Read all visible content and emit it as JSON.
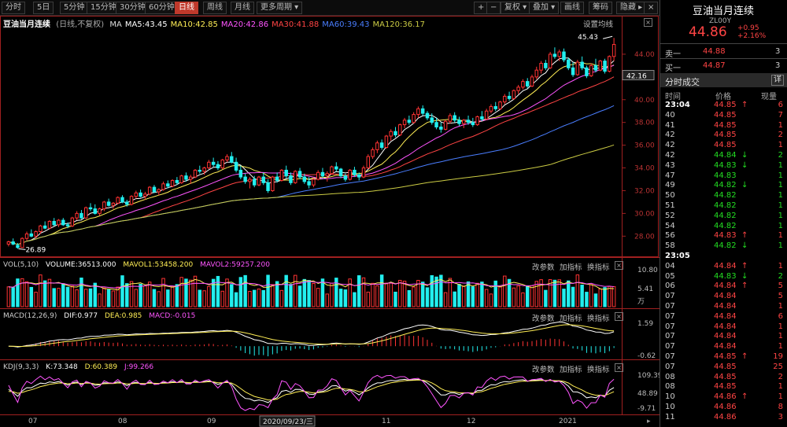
{
  "toolbar": {
    "items": [
      "分时",
      "5日",
      "5分钟",
      "15分钟",
      "30分钟",
      "60分钟",
      "日线",
      "周线",
      "月线",
      "更多周期"
    ],
    "right_items": [
      "+",
      "−",
      "复权",
      "叠加",
      "画线",
      "筹码",
      "隐藏"
    ],
    "right_icon": "close-icon"
  },
  "main": {
    "title": "豆油当月连续",
    "mode": "(日线,不复权)",
    "mas": [
      {
        "label": "MA",
        "color": "#dddddd"
      },
      {
        "label": "MA5:43.45",
        "color": "#ffffff"
      },
      {
        "label": "MA10:42.85",
        "color": "#ffee55"
      },
      {
        "label": "MA20:42.86",
        "color": "#ff55ff"
      },
      {
        "label": "MA30:41.88",
        "color": "#ff4444"
      },
      {
        "label": "MA60:39.43",
        "color": "#4a7eff"
      },
      {
        "label": "MA120:36.17",
        "color": "#cccc44"
      }
    ],
    "settings": "设置均线",
    "high_label": "45.43",
    "low_label": "26.89",
    "current_price_label": "42.16",
    "y_ticks": [
      "44.00",
      "42.00",
      "40.00",
      "38.00",
      "36.00",
      "34.00",
      "32.00",
      "30.00",
      "28.00"
    ]
  },
  "vol": {
    "title": "VOL(5,10)",
    "volume": "VOLUME:36513.000",
    "mavol1": "MAVOL1:53458.200",
    "mavol2": "MAVOL2:59257.200",
    "y_ticks": [
      "10.80",
      "5.41",
      "万"
    ]
  },
  "macd": {
    "title": "MACD(12,26,9)",
    "dif": "DIF:0.977",
    "dea": "DEA:0.985",
    "macd": "MACD:-0.015",
    "y_ticks": [
      "1.59",
      "-0.62"
    ]
  },
  "kdj": {
    "title": "KDJ(9,3,3)",
    "k": "K:73.348",
    "d": "D:60.389",
    "j": "J:99.266",
    "y_ticks": [
      "109.39",
      "48.89",
      "-9.71"
    ]
  },
  "panel_actions": [
    "改参数",
    "加指标",
    "换指标"
  ],
  "x_axis": {
    "labels": [
      "07",
      "08",
      "09",
      "11",
      "12",
      "2021"
    ],
    "cursor": "2020/09/23/三"
  },
  "right": {
    "title": "豆油当月连续",
    "code": "ZL00Y",
    "price": "44.86",
    "change": "+0.95",
    "pct": "+2.16%",
    "sell": {
      "label": "卖一",
      "price": "44.88",
      "vol": "3"
    },
    "buy": {
      "label": "买一",
      "price": "44.87",
      "vol": "3"
    },
    "trades_title": "分时成交",
    "detail_btn": "详",
    "headers": [
      "时间",
      "价格",
      "现量"
    ],
    "trades": [
      {
        "t": "23:04",
        "p": "44.85",
        "a": "↑",
        "v": "6",
        "c": "r",
        "bold": true
      },
      {
        "t": "40",
        "p": "44.85",
        "a": "",
        "v": "7",
        "c": "r"
      },
      {
        "t": "41",
        "p": "44.85",
        "a": "",
        "v": "1",
        "c": "r"
      },
      {
        "t": "42",
        "p": "44.85",
        "a": "",
        "v": "2",
        "c": "r"
      },
      {
        "t": "42",
        "p": "44.85",
        "a": "",
        "v": "1",
        "c": "r"
      },
      {
        "t": "42",
        "p": "44.84",
        "a": "↓",
        "v": "2",
        "c": "g"
      },
      {
        "t": "43",
        "p": "44.83",
        "a": "↓",
        "v": "1",
        "c": "g"
      },
      {
        "t": "47",
        "p": "44.83",
        "a": "",
        "v": "1",
        "c": "g"
      },
      {
        "t": "49",
        "p": "44.82",
        "a": "↓",
        "v": "1",
        "c": "g"
      },
      {
        "t": "50",
        "p": "44.82",
        "a": "",
        "v": "1",
        "c": "g"
      },
      {
        "t": "51",
        "p": "44.82",
        "a": "",
        "v": "1",
        "c": "g"
      },
      {
        "t": "52",
        "p": "44.82",
        "a": "",
        "v": "1",
        "c": "g"
      },
      {
        "t": "54",
        "p": "44.82",
        "a": "",
        "v": "1",
        "c": "g"
      },
      {
        "t": "56",
        "p": "44.83",
        "a": "↑",
        "v": "1",
        "c": "r"
      },
      {
        "t": "58",
        "p": "44.82",
        "a": "↓",
        "v": "1",
        "c": "g"
      },
      {
        "t": "23:05",
        "p": "",
        "a": "",
        "v": "",
        "c": "r",
        "bold": true
      },
      {
        "t": "04",
        "p": "44.84",
        "a": "↑",
        "v": "1",
        "c": "r"
      },
      {
        "t": "05",
        "p": "44.83",
        "a": "↓",
        "v": "2",
        "c": "g"
      },
      {
        "t": "06",
        "p": "44.84",
        "a": "↑",
        "v": "5",
        "c": "r"
      },
      {
        "t": "07",
        "p": "44.84",
        "a": "",
        "v": "5",
        "c": "r"
      },
      {
        "t": "07",
        "p": "44.84",
        "a": "",
        "v": "1",
        "c": "r"
      },
      {
        "t": "07",
        "p": "44.84",
        "a": "",
        "v": "6",
        "c": "r"
      },
      {
        "t": "07",
        "p": "44.84",
        "a": "",
        "v": "1",
        "c": "r"
      },
      {
        "t": "07",
        "p": "44.84",
        "a": "",
        "v": "1",
        "c": "r"
      },
      {
        "t": "07",
        "p": "44.84",
        "a": "",
        "v": "1",
        "c": "r"
      },
      {
        "t": "07",
        "p": "44.85",
        "a": "↑",
        "v": "19",
        "c": "r"
      },
      {
        "t": "07",
        "p": "44.85",
        "a": "",
        "v": "25",
        "c": "r"
      },
      {
        "t": "08",
        "p": "44.85",
        "a": "",
        "v": "2",
        "c": "r"
      },
      {
        "t": "08",
        "p": "44.85",
        "a": "",
        "v": "1",
        "c": "r"
      },
      {
        "t": "10",
        "p": "44.86",
        "a": "↑",
        "v": "1",
        "c": "r"
      },
      {
        "t": "10",
        "p": "44.86",
        "a": "",
        "v": "8",
        "c": "r"
      },
      {
        "t": "11",
        "p": "44.86",
        "a": "",
        "v": "3",
        "c": "r"
      }
    ]
  },
  "colors": {
    "up": "#ff3333",
    "down": "#22eeee",
    "text_red": "#ff4444",
    "text_green": "#22dd22"
  },
  "chart_data": {
    "type": "candlestick",
    "title": "豆油当月连续",
    "ylim": [
      26.5,
      46
    ],
    "high": 45.43,
    "low": 26.89,
    "candles": [
      [
        27.3,
        27.6,
        27.1,
        27.5
      ],
      [
        27.5,
        27.8,
        27.2,
        27.3
      ],
      [
        27.2,
        27.4,
        26.89,
        27.0
      ],
      [
        27.0,
        27.9,
        27.0,
        27.8
      ],
      [
        27.8,
        28.4,
        27.6,
        28.2
      ],
      [
        28.2,
        28.6,
        27.9,
        28.0
      ],
      [
        28.0,
        28.5,
        27.8,
        28.4
      ],
      [
        28.4,
        29.0,
        28.2,
        28.9
      ],
      [
        28.9,
        29.3,
        28.6,
        28.7
      ],
      [
        28.7,
        29.4,
        28.6,
        29.3
      ],
      [
        29.3,
        29.6,
        28.9,
        29.0
      ],
      [
        29.0,
        29.5,
        28.8,
        29.4
      ],
      [
        29.4,
        29.6,
        28.9,
        29.0
      ],
      [
        29.0,
        29.2,
        28.7,
        28.9
      ],
      [
        28.9,
        29.7,
        28.8,
        29.6
      ],
      [
        29.6,
        30.2,
        29.4,
        30.0
      ],
      [
        30.0,
        30.3,
        29.5,
        29.6
      ],
      [
        29.6,
        30.6,
        29.5,
        30.5
      ],
      [
        30.5,
        30.9,
        30.2,
        30.4
      ],
      [
        30.4,
        30.8,
        29.9,
        30.0
      ],
      [
        30.0,
        30.5,
        29.8,
        30.4
      ],
      [
        30.4,
        31.1,
        30.2,
        31.0
      ],
      [
        31.0,
        31.3,
        30.6,
        30.7
      ],
      [
        30.7,
        31.0,
        30.4,
        30.9
      ],
      [
        30.9,
        31.5,
        30.8,
        31.4
      ],
      [
        31.4,
        31.6,
        30.9,
        31.0
      ],
      [
        31.0,
        31.2,
        30.6,
        30.8
      ],
      [
        30.8,
        31.6,
        30.7,
        31.5
      ],
      [
        31.5,
        32.0,
        31.3,
        31.8
      ],
      [
        31.8,
        32.1,
        31.4,
        31.5
      ],
      [
        31.5,
        31.9,
        31.2,
        31.7
      ],
      [
        31.7,
        32.4,
        31.6,
        32.3
      ],
      [
        32.3,
        32.5,
        31.8,
        31.9
      ],
      [
        31.9,
        32.2,
        31.6,
        32.1
      ],
      [
        32.1,
        32.8,
        32.0,
        32.6
      ],
      [
        32.6,
        32.9,
        32.2,
        32.4
      ],
      [
        32.4,
        33.0,
        32.3,
        32.9
      ],
      [
        32.9,
        33.2,
        32.5,
        32.7
      ],
      [
        32.7,
        33.4,
        32.6,
        33.3
      ],
      [
        33.3,
        33.6,
        32.8,
        33.0
      ],
      [
        33.0,
        33.4,
        32.6,
        33.2
      ],
      [
        33.2,
        33.9,
        33.1,
        33.8
      ],
      [
        33.8,
        34.2,
        33.5,
        33.7
      ],
      [
        33.7,
        34.1,
        33.4,
        34.0
      ],
      [
        34.0,
        34.7,
        33.9,
        34.5
      ],
      [
        34.5,
        34.9,
        34.1,
        34.3
      ],
      [
        34.3,
        34.6,
        33.8,
        34.0
      ],
      [
        34.0,
        34.8,
        33.9,
        34.7
      ],
      [
        34.7,
        35.2,
        34.5,
        35.0
      ],
      [
        35.0,
        35.4,
        34.4,
        34.5
      ],
      [
        34.5,
        34.9,
        33.6,
        33.8
      ],
      [
        33.8,
        34.2,
        33.0,
        33.2
      ],
      [
        33.2,
        33.5,
        32.6,
        32.8
      ],
      [
        32.8,
        33.2,
        32.2,
        33.0
      ],
      [
        33.0,
        33.3,
        32.3,
        32.5
      ],
      [
        32.5,
        33.3,
        32.4,
        33.2
      ],
      [
        33.2,
        33.6,
        32.5,
        32.7
      ],
      [
        32.7,
        33.0,
        31.8,
        32.0
      ],
      [
        32.0,
        33.3,
        31.9,
        33.2
      ],
      [
        33.2,
        33.6,
        32.7,
        32.9
      ],
      [
        32.9,
        33.9,
        32.8,
        33.8
      ],
      [
        33.8,
        34.2,
        33.1,
        33.3
      ],
      [
        33.3,
        33.6,
        32.5,
        32.7
      ],
      [
        32.7,
        33.8,
        32.6,
        33.7
      ],
      [
        33.7,
        34.0,
        33.0,
        33.2
      ],
      [
        33.2,
        33.5,
        32.6,
        32.8
      ],
      [
        32.8,
        33.2,
        32.2,
        32.5
      ],
      [
        32.5,
        33.1,
        32.3,
        33.0
      ],
      [
        33.0,
        33.8,
        32.9,
        33.6
      ],
      [
        33.6,
        34.0,
        33.1,
        33.3
      ],
      [
        33.3,
        33.7,
        32.8,
        33.5
      ],
      [
        33.5,
        34.2,
        33.4,
        34.1
      ],
      [
        34.1,
        34.5,
        33.7,
        33.9
      ],
      [
        33.9,
        34.0,
        33.1,
        33.3
      ],
      [
        33.3,
        33.5,
        32.8,
        33.0
      ],
      [
        33.0,
        33.9,
        32.9,
        33.8
      ],
      [
        33.8,
        34.1,
        33.2,
        33.4
      ],
      [
        33.4,
        33.6,
        32.9,
        33.2
      ],
      [
        33.2,
        34.2,
        33.1,
        34.0
      ],
      [
        34.0,
        35.2,
        33.9,
        35.0
      ],
      [
        35.0,
        35.8,
        34.8,
        35.6
      ],
      [
        35.6,
        36.4,
        35.3,
        36.2
      ],
      [
        36.2,
        36.5,
        35.6,
        35.8
      ],
      [
        35.8,
        36.9,
        35.7,
        36.8
      ],
      [
        36.8,
        37.4,
        36.4,
        37.2
      ],
      [
        37.2,
        37.6,
        36.7,
        36.9
      ],
      [
        36.9,
        37.9,
        36.8,
        37.8
      ],
      [
        37.8,
        38.4,
        37.5,
        38.2
      ],
      [
        38.2,
        38.6,
        37.8,
        38.0
      ],
      [
        38.0,
        38.9,
        37.9,
        38.7
      ],
      [
        38.7,
        39.4,
        38.4,
        39.2
      ],
      [
        39.2,
        39.5,
        38.6,
        38.8
      ],
      [
        38.8,
        39.0,
        38.2,
        38.4
      ],
      [
        38.4,
        38.8,
        37.8,
        38.0
      ],
      [
        38.0,
        38.4,
        37.4,
        37.6
      ],
      [
        37.6,
        38.0,
        37.1,
        37.4
      ],
      [
        37.4,
        38.2,
        37.3,
        38.1
      ],
      [
        38.1,
        38.8,
        37.9,
        38.6
      ],
      [
        38.6,
        38.9,
        38.0,
        38.2
      ],
      [
        38.2,
        38.5,
        37.7,
        37.9
      ],
      [
        37.9,
        38.3,
        37.5,
        38.2
      ],
      [
        38.2,
        38.6,
        37.8,
        38.0
      ],
      [
        38.0,
        38.4,
        37.6,
        37.8
      ],
      [
        37.8,
        38.6,
        37.7,
        38.5
      ],
      [
        38.5,
        39.0,
        38.1,
        38.3
      ],
      [
        38.3,
        39.2,
        38.2,
        39.0
      ],
      [
        39.0,
        39.6,
        38.8,
        39.4
      ],
      [
        39.4,
        39.8,
        39.0,
        39.2
      ],
      [
        39.2,
        39.9,
        39.1,
        39.8
      ],
      [
        39.8,
        40.5,
        39.6,
        40.3
      ],
      [
        40.3,
        40.7,
        39.9,
        40.1
      ],
      [
        40.1,
        40.9,
        40.0,
        40.8
      ],
      [
        40.8,
        41.3,
        40.5,
        41.1
      ],
      [
        41.1,
        41.8,
        40.9,
        41.6
      ],
      [
        41.6,
        41.9,
        41.0,
        41.2
      ],
      [
        41.2,
        42.2,
        41.1,
        42.0
      ],
      [
        42.0,
        42.9,
        41.8,
        42.6
      ],
      [
        42.6,
        43.4,
        42.3,
        43.2
      ],
      [
        43.2,
        43.5,
        42.6,
        42.8
      ],
      [
        42.8,
        44.2,
        42.7,
        44.0
      ],
      [
        44.0,
        44.6,
        43.6,
        43.8
      ],
      [
        43.8,
        44.4,
        43.4,
        44.2
      ],
      [
        44.2,
        44.5,
        43.3,
        43.5
      ],
      [
        43.5,
        43.7,
        42.6,
        42.8
      ],
      [
        42.8,
        43.3,
        42.0,
        42.2
      ],
      [
        42.2,
        43.5,
        42.1,
        43.3
      ],
      [
        43.3,
        43.8,
        42.6,
        42.8
      ],
      [
        42.8,
        43.0,
        41.9,
        42.1
      ],
      [
        42.1,
        43.2,
        42.0,
        43.0
      ],
      [
        43.0,
        43.6,
        42.4,
        42.6
      ],
      [
        42.6,
        43.5,
        42.5,
        43.4
      ],
      [
        43.4,
        43.6,
        42.3,
        42.5
      ],
      [
        42.5,
        43.9,
        42.4,
        43.8
      ],
      [
        43.8,
        45.43,
        43.4,
        44.86
      ]
    ]
  }
}
